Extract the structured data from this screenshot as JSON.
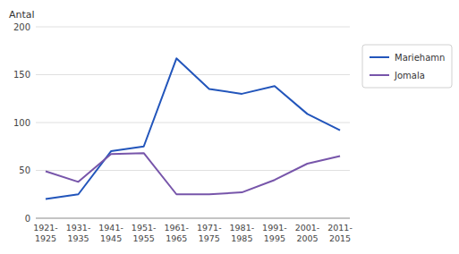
{
  "chart_data": {
    "type": "line",
    "y_label": "Antal",
    "categories": [
      "1921-\n1925",
      "1931-\n1935",
      "1941-\n1945",
      "1951-\n1955",
      "1961-\n1965",
      "1971-\n1975",
      "1981-\n1985",
      "1991-\n1995",
      "2001-\n2005",
      "2011-\n2015"
    ],
    "series": [
      {
        "name": "Mariehamn",
        "color": "#2255BB",
        "values": [
          20,
          25,
          70,
          75,
          167,
          135,
          130,
          138,
          109,
          92
        ]
      },
      {
        "name": "Jomala",
        "color": "#7755AA",
        "values": [
          49,
          38,
          67,
          68,
          25,
          25,
          27,
          40,
          57,
          65
        ]
      }
    ],
    "ylim": [
      0,
      200
    ],
    "yticks": [
      0,
      50,
      100,
      150,
      200
    ],
    "grid": true,
    "legend": "right"
  }
}
